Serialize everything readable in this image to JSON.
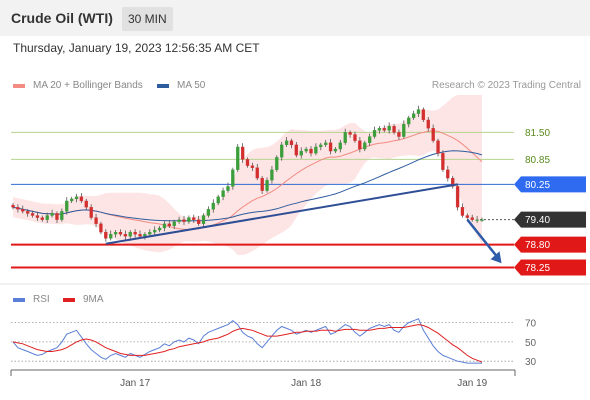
{
  "header": {
    "title": "Crude Oil (WTI)",
    "timeframe": "30 MIN"
  },
  "timestamp": "Thursday, January 19, 2023 12:56:35 AM CET",
  "legend": {
    "ma20": {
      "label": "MA 20 + Bollinger Bands",
      "color": "#f28b82"
    },
    "ma50": {
      "label": "MA 50",
      "color": "#2e5c9e"
    },
    "credit": "Research © 2023 Trading Central"
  },
  "rsi_legend": {
    "rsi": {
      "label": "RSI",
      "color": "#5b7fd6"
    },
    "ma9": {
      "label": "9MA",
      "color": "#e02020"
    }
  },
  "chart_data": [
    {
      "type": "candlestick",
      "title": "Crude Oil (WTI)",
      "timeframe": "30 MIN",
      "ylim": [
        77.9,
        82.4
      ],
      "x_ticks": [
        {
          "label": "Jan 17",
          "index": 25
        },
        {
          "label": "Jan 18",
          "index": 60
        },
        {
          "label": "Jan 19",
          "index": 94
        }
      ],
      "levels": [
        {
          "value": 81.5,
          "label": "81.50",
          "kind": "resistance"
        },
        {
          "value": 80.85,
          "label": "80.85",
          "kind": "resistance"
        },
        {
          "value": 80.25,
          "label": "80.25",
          "kind": "pivot"
        },
        {
          "value": 79.4,
          "label": "79.40",
          "kind": "last"
        },
        {
          "value": 78.8,
          "label": "78.80",
          "kind": "support"
        },
        {
          "value": 78.25,
          "label": "78.25",
          "kind": "support"
        }
      ],
      "trendline": {
        "start": {
          "index": 19,
          "value": 78.82
        },
        "end": {
          "index": 91,
          "value": 80.25
        }
      },
      "forecast_arrow": {
        "start": {
          "index": 93,
          "value": 79.4
        },
        "end": {
          "index": 100,
          "value": 78.35
        }
      },
      "close": [
        79.7,
        79.65,
        79.6,
        79.55,
        79.5,
        79.45,
        79.4,
        79.5,
        79.55,
        79.4,
        79.6,
        79.85,
        79.9,
        79.95,
        79.85,
        79.7,
        79.45,
        79.3,
        79.1,
        78.95,
        79.05,
        79.1,
        79.05,
        79.0,
        79.1,
        79.05,
        79.0,
        79.05,
        79.1,
        79.15,
        79.2,
        79.3,
        79.25,
        79.35,
        79.4,
        79.35,
        79.45,
        79.4,
        79.3,
        79.5,
        79.65,
        79.8,
        79.95,
        80.1,
        80.2,
        80.6,
        81.15,
        80.85,
        80.7,
        80.65,
        80.4,
        80.1,
        80.35,
        80.6,
        80.9,
        81.2,
        81.3,
        81.2,
        80.95,
        81.05,
        81.1,
        81.0,
        81.15,
        81.2,
        81.25,
        81.05,
        81.1,
        81.25,
        81.5,
        81.45,
        81.3,
        81.1,
        81.25,
        81.4,
        81.55,
        81.6,
        81.55,
        81.65,
        81.5,
        81.4,
        81.7,
        81.85,
        81.95,
        82.05,
        81.8,
        81.6,
        81.3,
        81.0,
        80.6,
        80.4,
        80.2,
        79.7,
        79.5,
        79.45,
        79.4,
        79.4,
        79.4
      ]
    },
    {
      "type": "line",
      "title": "RSI",
      "ylim": [
        25,
        80
      ],
      "y_ticks": [
        70,
        50,
        30
      ],
      "series": [
        {
          "name": "RSI",
          "values": [
            50,
            44,
            42,
            40,
            38,
            36,
            37,
            40,
            42,
            44,
            50,
            58,
            60,
            62,
            55,
            48,
            42,
            38,
            34,
            32,
            36,
            38,
            36,
            34,
            38,
            36,
            34,
            37,
            40,
            42,
            44,
            48,
            46,
            50,
            52,
            50,
            54,
            52,
            48,
            56,
            60,
            62,
            64,
            66,
            68,
            72,
            68,
            60,
            56,
            54,
            48,
            44,
            50,
            56,
            62,
            66,
            64,
            62,
            58,
            60,
            62,
            60,
            62,
            64,
            66,
            58,
            60,
            64,
            68,
            66,
            60,
            56,
            60,
            64,
            66,
            68,
            66,
            68,
            62,
            60,
            66,
            70,
            72,
            74,
            62,
            54,
            46,
            40,
            36,
            34,
            32,
            30,
            29,
            28,
            28,
            28,
            28
          ]
        },
        {
          "name": "9MA",
          "values": [
            50,
            49,
            48,
            46,
            44,
            42,
            41,
            40,
            40,
            41,
            42,
            44,
            47,
            50,
            52,
            53,
            52,
            50,
            47,
            44,
            42,
            40,
            38,
            37,
            36,
            36,
            36,
            36,
            37,
            38,
            39,
            40,
            42,
            43,
            45,
            46,
            47,
            48,
            49,
            50,
            52,
            53,
            54,
            56,
            58,
            61,
            63,
            64,
            63,
            62,
            60,
            58,
            56,
            56,
            56,
            57,
            58,
            59,
            60,
            60,
            61,
            61,
            61,
            62,
            62,
            62,
            61,
            62,
            63,
            63,
            63,
            62,
            62,
            62,
            63,
            64,
            64,
            65,
            65,
            65,
            65,
            66,
            67,
            68,
            67,
            65,
            62,
            59,
            55,
            51,
            47,
            44,
            40,
            36,
            33,
            31,
            29
          ]
        }
      ]
    }
  ]
}
